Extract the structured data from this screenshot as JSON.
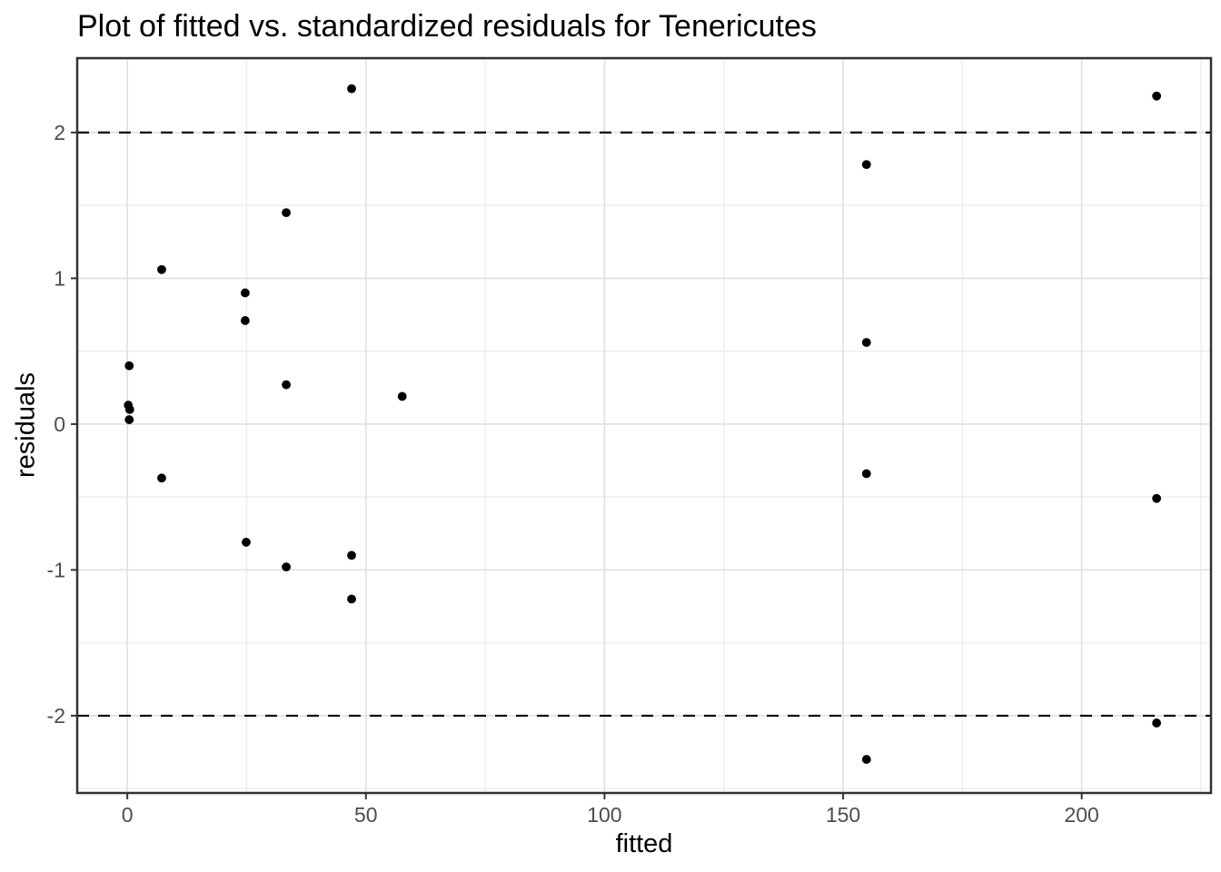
{
  "chart_data": {
    "type": "scatter",
    "title": "Plot of fitted vs. standardized residuals for Tenericutes",
    "xlabel": "fitted",
    "ylabel": "residuals",
    "xlim": [
      -10.5,
      227.1
    ],
    "ylim": [
      -2.53,
      2.51
    ],
    "x_axis": {
      "major_ticks": [
        0,
        50,
        100,
        150,
        200
      ],
      "tick_labels": [
        "0",
        "50",
        "100",
        "150",
        "200"
      ],
      "minor_gridlines": [
        25,
        75,
        125,
        175,
        225
      ]
    },
    "y_axis": {
      "major_ticks": [
        -2,
        -1,
        0,
        1,
        2
      ],
      "tick_labels": [
        "-2",
        "-1",
        "0",
        "1",
        "2"
      ],
      "minor_gridlines": [
        -2.5,
        -1.5,
        -0.5,
        0.5,
        1.5,
        2.5
      ]
    },
    "reference_lines": [
      {
        "y": 2,
        "style": "dashed"
      },
      {
        "y": -2,
        "style": "dashed"
      }
    ],
    "grid": "on",
    "legend_position": "none",
    "points": [
      {
        "x": 47.0,
        "y": 2.3
      },
      {
        "x": 215.7,
        "y": 2.25
      },
      {
        "x": 154.9,
        "y": 1.78
      },
      {
        "x": 33.3,
        "y": 1.45
      },
      {
        "x": 7.2,
        "y": 1.06
      },
      {
        "x": 24.7,
        "y": 0.9
      },
      {
        "x": 24.7,
        "y": 0.71
      },
      {
        "x": 154.9,
        "y": 0.56
      },
      {
        "x": 0.4,
        "y": 0.4
      },
      {
        "x": 33.3,
        "y": 0.27
      },
      {
        "x": 57.6,
        "y": 0.19
      },
      {
        "x": 0.2,
        "y": 0.13
      },
      {
        "x": 0.5,
        "y": 0.1
      },
      {
        "x": 0.4,
        "y": 0.03
      },
      {
        "x": 154.9,
        "y": -0.34
      },
      {
        "x": 7.2,
        "y": -0.37
      },
      {
        "x": 215.7,
        "y": -0.51
      },
      {
        "x": 24.9,
        "y": -0.81
      },
      {
        "x": 47.0,
        "y": -0.9
      },
      {
        "x": 33.3,
        "y": -0.98
      },
      {
        "x": 47.0,
        "y": -1.2
      },
      {
        "x": 215.7,
        "y": -2.05
      },
      {
        "x": 154.9,
        "y": -2.3
      }
    ],
    "style": {
      "background": "#ffffff",
      "point_color": "#000000",
      "point_radius_px": 4.9,
      "grid_major_color": "#e2e2e2",
      "grid_minor_color": "#ebebeb",
      "panel_border_color": "#333333",
      "tick_color": "#333333",
      "tick_label_color": "#4d4d4d",
      "text_color": "#000000",
      "reference_line_color": "#000000"
    }
  }
}
